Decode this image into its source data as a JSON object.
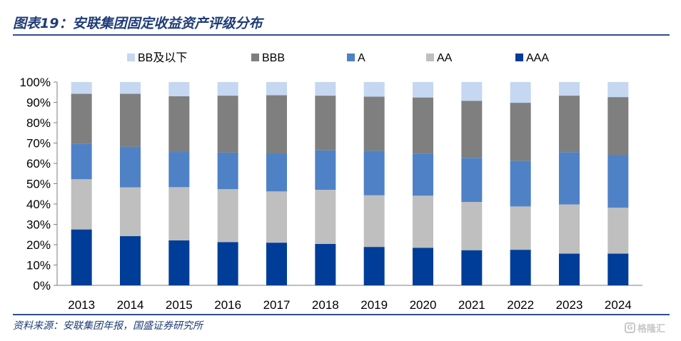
{
  "title": "图表19：安联集团固定收益资产评级分布",
  "source": "资料来源：安联集团年报，国盛证券研究所",
  "watermark": {
    "text": "格隆汇",
    "icon": "G"
  },
  "chart_data": {
    "type": "bar",
    "stacked": true,
    "categories": [
      "2013",
      "2014",
      "2015",
      "2016",
      "2017",
      "2018",
      "2019",
      "2020",
      "2021",
      "2022",
      "2023",
      "2024"
    ],
    "series": [
      {
        "name": "AAA",
        "color": "#003d99",
        "values": [
          27.5,
          24.2,
          22.1,
          21.3,
          21.0,
          20.4,
          18.9,
          18.5,
          17.3,
          17.5,
          15.6,
          15.6
        ]
      },
      {
        "name": "AA",
        "color": "#bfbfbf",
        "values": [
          24.7,
          24.0,
          26.2,
          26.0,
          25.2,
          26.6,
          25.4,
          25.6,
          23.7,
          21.3,
          24.2,
          22.6
        ]
      },
      {
        "name": "A",
        "color": "#4f81c6",
        "values": [
          17.4,
          20.0,
          17.3,
          18.0,
          18.7,
          19.4,
          21.9,
          20.7,
          21.7,
          22.5,
          25.7,
          26.0
        ]
      },
      {
        "name": "BBB",
        "color": "#7f7f7f",
        "values": [
          24.6,
          26.0,
          27.4,
          28.0,
          28.6,
          26.9,
          26.6,
          27.6,
          28.1,
          28.5,
          27.8,
          28.4
        ]
      },
      {
        "name": "BB及以下",
        "color": "#c5d7f1",
        "values": [
          5.8,
          5.8,
          7.0,
          6.7,
          6.5,
          6.7,
          7.2,
          7.6,
          9.2,
          10.2,
          6.7,
          7.4
        ]
      }
    ],
    "legend_order": [
      "BB及以下",
      "BBB",
      "A",
      "AA",
      "AAA"
    ],
    "legend_position": "top",
    "ylim": [
      0,
      100
    ],
    "yticks": [
      "0%",
      "10%",
      "20%",
      "30%",
      "40%",
      "50%",
      "60%",
      "70%",
      "80%",
      "90%",
      "100%"
    ],
    "grid": false
  }
}
